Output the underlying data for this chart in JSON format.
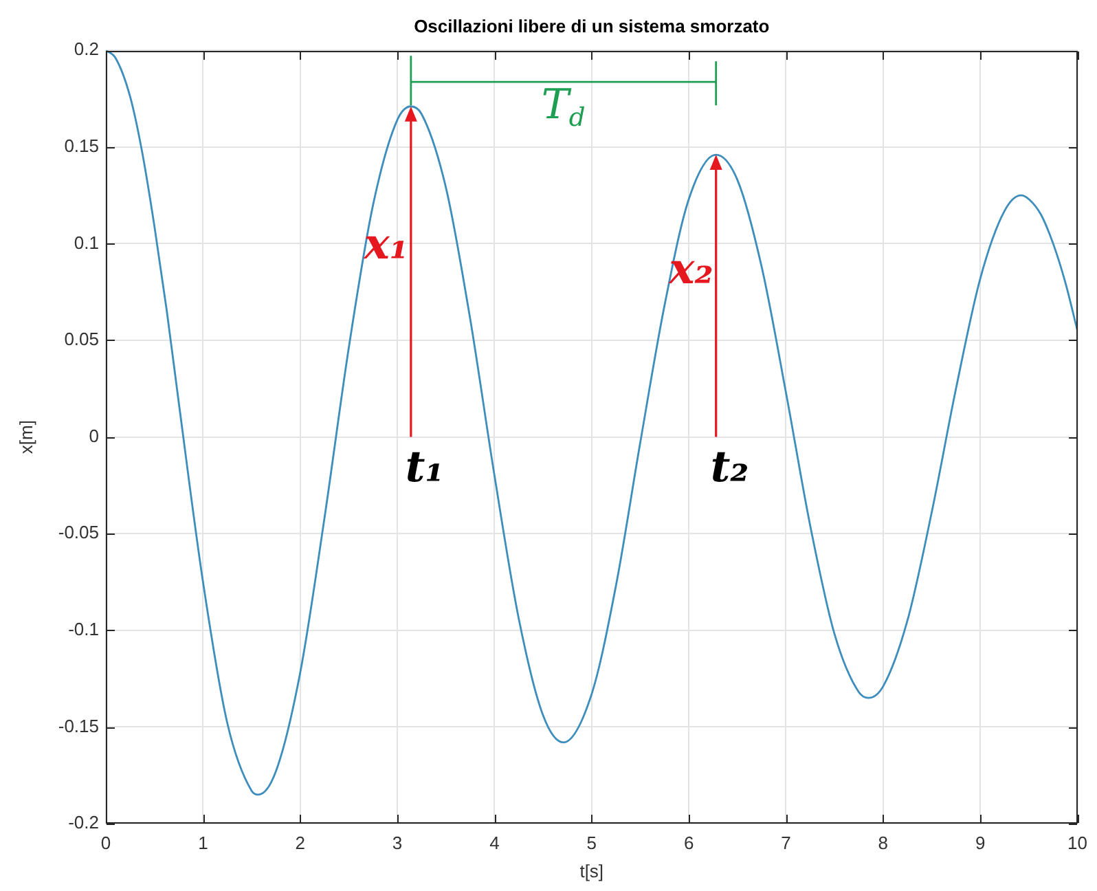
{
  "chart_data": {
    "type": "line",
    "title": "Oscillazioni libere di un sistema smorzato",
    "xlabel": "t[s]",
    "ylabel": "x[m]",
    "x": [
      0,
      0.1,
      0.25,
      0.375,
      0.5,
      0.625,
      0.75,
      1,
      1.25,
      1.5,
      1.57,
      1.75,
      2,
      2.25,
      2.5,
      2.75,
      3,
      3.14,
      3.25,
      3.5,
      3.75,
      4,
      4.25,
      4.5,
      4.71,
      5,
      5.25,
      5.5,
      5.75,
      6,
      6.28,
      6.5,
      6.75,
      7,
      7.25,
      7.5,
      7.75,
      7.85,
      8,
      8.25,
      8.5,
      8.75,
      9,
      9.25,
      9.42,
      9.5,
      9.625,
      9.75,
      9.875,
      10
    ],
    "series": [
      {
        "color": "#3d8dbd",
        "values": [
          0.2,
          0.196,
          0.176,
          0.147,
          0.109,
          0.066,
          0.018,
          -0.075,
          -0.148,
          -0.183,
          -0.185,
          -0.173,
          -0.122,
          -0.042,
          0.046,
          0.12,
          0.164,
          0.171,
          0.167,
          0.129,
          0.061,
          -0.02,
          -0.094,
          -0.144,
          -0.158,
          -0.133,
          -0.077,
          -0.003,
          0.068,
          0.123,
          0.146,
          0.133,
          0.088,
          0.023,
          -0.046,
          -0.102,
          -0.132,
          -0.135,
          -0.129,
          -0.095,
          -0.039,
          0.025,
          0.082,
          0.117,
          0.125,
          0.123,
          0.115,
          0.1,
          0.08,
          0.055
        ]
      }
    ],
    "xlim": [
      0,
      10
    ],
    "xticks": [
      0,
      1,
      2,
      3,
      4,
      5,
      6,
      7,
      8,
      9,
      10
    ],
    "ylim": [
      -0.2,
      0.2
    ],
    "yticks": [
      -0.2,
      -0.15,
      -0.1,
      -0.05,
      0,
      0.05,
      0.1,
      0.15,
      0.2
    ],
    "grid": true,
    "marker": "none",
    "line_style": "solid",
    "annotations": [
      {
        "text": "x₁",
        "x": 3.14,
        "y": 0.171
      },
      {
        "text": "x₂",
        "x": 6.28,
        "y": 0.146
      },
      "t₁",
      "t₂",
      "T$_{d}$"
    ]
  }
}
